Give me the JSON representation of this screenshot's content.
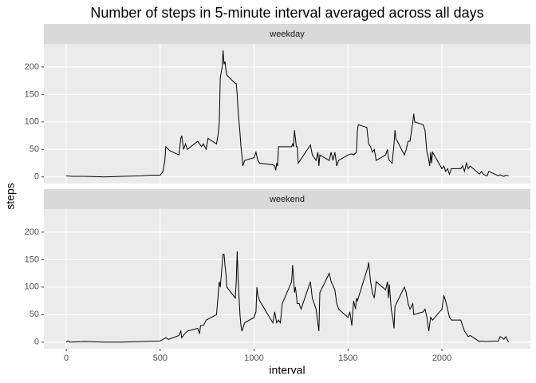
{
  "title": "Number of steps in 5-minute interval averaged across all days",
  "x_label": "interval",
  "y_label": "steps",
  "chart_data": [
    {
      "type": "line",
      "strip": "weekday",
      "color": "#000000",
      "x": [
        0,
        30,
        100,
        200,
        300,
        400,
        450,
        500,
        515,
        525,
        530,
        550,
        600,
        610,
        615,
        625,
        635,
        645,
        700,
        720,
        730,
        745,
        755,
        800,
        810,
        815,
        820,
        830,
        835,
        840,
        845,
        850,
        855,
        900,
        905,
        910,
        915,
        920,
        925,
        930,
        935,
        940,
        950,
        1000,
        1010,
        1020,
        1030,
        1100,
        1110,
        1115,
        1120,
        1125,
        1130,
        1200,
        1205,
        1210,
        1215,
        1225,
        1230,
        1235,
        1300,
        1310,
        1320,
        1330,
        1340,
        1345,
        1350,
        1400,
        1410,
        1420,
        1430,
        1440,
        1450,
        1500,
        1520,
        1530,
        1545,
        1550,
        1555,
        1600,
        1610,
        1620,
        1630,
        1640,
        1650,
        1700,
        1710,
        1715,
        1720,
        1735,
        1745,
        1750,
        1755,
        1800,
        1810,
        1820,
        1830,
        1845,
        1850,
        1855,
        1900,
        1910,
        1920,
        1925,
        1930,
        1935,
        1940,
        1945,
        1950,
        2000,
        2010,
        2020,
        2030,
        2040,
        2050,
        2100,
        2110,
        2120,
        2130,
        2140,
        2150,
        2200,
        2210,
        2220,
        2230,
        2240,
        2250,
        2300,
        2310,
        2320,
        2330,
        2340,
        2355
      ],
      "values": [
        2,
        1,
        1,
        0,
        1,
        2,
        3,
        3,
        10,
        30,
        55,
        48,
        40,
        70,
        75,
        50,
        60,
        50,
        65,
        55,
        60,
        50,
        70,
        60,
        80,
        100,
        180,
        200,
        230,
        205,
        210,
        195,
        185,
        170,
        170,
        150,
        120,
        100,
        80,
        55,
        40,
        20,
        30,
        35,
        45,
        30,
        25,
        22,
        20,
        12,
        25,
        20,
        55,
        55,
        60,
        55,
        85,
        55,
        55,
        25,
        58,
        40,
        35,
        30,
        45,
        20,
        40,
        30,
        45,
        30,
        45,
        20,
        30,
        40,
        42,
        40,
        45,
        85,
        95,
        90,
        60,
        55,
        45,
        50,
        30,
        40,
        50,
        35,
        30,
        25,
        60,
        85,
        70,
        40,
        50,
        65,
        65,
        100,
        115,
        100,
        95,
        85,
        45,
        40,
        30,
        20,
        45,
        25,
        45,
        15,
        20,
        10,
        15,
        5,
        15,
        15,
        20,
        10,
        25,
        15,
        20,
        5,
        10,
        5,
        3,
        2,
        10,
        2,
        4,
        2,
        1,
        3,
        2
      ],
      "xlim": [
        -119,
        2471
      ],
      "ylim": [
        -12,
        242
      ],
      "xticks": [
        0,
        500,
        1000,
        1500,
        2000
      ],
      "yticks": [
        0,
        50,
        100,
        150,
        200
      ]
    },
    {
      "type": "line",
      "strip": "weekend",
      "color": "#000000",
      "x": [
        0,
        10,
        20,
        100,
        200,
        300,
        400,
        500,
        515,
        530,
        545,
        600,
        610,
        615,
        630,
        645,
        700,
        710,
        715,
        730,
        745,
        800,
        815,
        820,
        835,
        840,
        845,
        850,
        855,
        900,
        905,
        910,
        915,
        925,
        930,
        935,
        950,
        1000,
        1010,
        1015,
        1020,
        1030,
        1100,
        1110,
        1120,
        1130,
        1140,
        1150,
        1200,
        1205,
        1210,
        1215,
        1220,
        1230,
        1240,
        1250,
        1300,
        1310,
        1320,
        1330,
        1345,
        1350,
        1400,
        1410,
        1430,
        1440,
        1450,
        1500,
        1510,
        1520,
        1530,
        1540,
        1545,
        1550,
        1600,
        1605,
        1610,
        1620,
        1630,
        1640,
        1650,
        1700,
        1710,
        1715,
        1720,
        1730,
        1740,
        1745,
        1750,
        1800,
        1810,
        1820,
        1830,
        1845,
        1850,
        1900,
        1910,
        1920,
        1930,
        1940,
        1950,
        2000,
        2010,
        2020,
        2030,
        2040,
        2050,
        2100,
        2110,
        2120,
        2130,
        2140,
        2150,
        2200,
        2210,
        2230,
        2300,
        2310,
        2320,
        2330,
        2340,
        2350,
        2355
      ],
      "values": [
        0,
        2,
        0,
        1,
        0,
        0,
        1,
        2,
        5,
        8,
        5,
        12,
        20,
        8,
        15,
        20,
        25,
        15,
        30,
        30,
        40,
        50,
        110,
        100,
        160,
        160,
        140,
        125,
        100,
        80,
        110,
        165,
        115,
        50,
        30,
        20,
        35,
        45,
        55,
        100,
        85,
        75,
        35,
        55,
        35,
        40,
        35,
        70,
        110,
        140,
        120,
        90,
        100,
        70,
        70,
        60,
        110,
        80,
        70,
        60,
        20,
        90,
        125,
        110,
        95,
        70,
        60,
        45,
        55,
        30,
        75,
        60,
        80,
        75,
        130,
        135,
        145,
        110,
        90,
        80,
        110,
        95,
        110,
        80,
        105,
        60,
        40,
        25,
        65,
        100,
        90,
        70,
        60,
        70,
        50,
        55,
        60,
        45,
        20,
        45,
        40,
        60,
        85,
        75,
        60,
        45,
        40,
        40,
        30,
        20,
        15,
        10,
        12,
        1,
        2,
        1,
        2,
        10,
        8,
        5,
        10,
        3,
        0
      ],
      "xlim": [
        -119,
        2471
      ],
      "ylim": [
        -12,
        242
      ],
      "xticks": [
        0,
        500,
        1000,
        1500,
        2000
      ],
      "yticks": [
        0,
        50,
        100,
        150,
        200
      ]
    }
  ]
}
